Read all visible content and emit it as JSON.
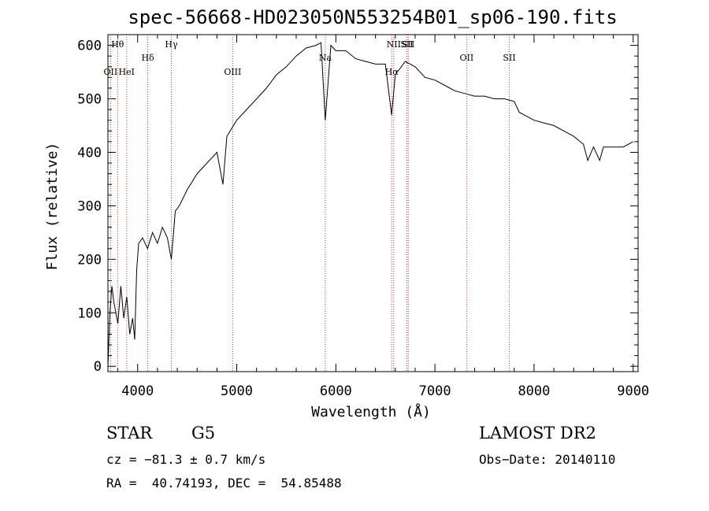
{
  "chart_data": {
    "type": "line",
    "title": "spec-56668-HD023050N553254B01_sp06-190.fits",
    "xlabel": "Wavelength (Å)",
    "ylabel": "Flux (relative)",
    "xlim": [
      3700,
      9050
    ],
    "ylim": [
      -10,
      620
    ],
    "xticks": [
      4000,
      5000,
      6000,
      7000,
      8000,
      9000
    ],
    "yticks": [
      0,
      100,
      200,
      300,
      400,
      500,
      600
    ],
    "grid": false,
    "series": [
      {
        "x": [
          3700,
          3720,
          3740,
          3760,
          3780,
          3800,
          3830,
          3860,
          3890,
          3920,
          3950,
          3970,
          3990,
          4010,
          4050,
          4100,
          4150,
          4200,
          4250,
          4300,
          4340,
          4380,
          4420,
          4500,
          4600,
          4700,
          4800,
          4861,
          4900,
          5000,
          5100,
          5200,
          5300,
          5400,
          5500,
          5600,
          5700,
          5800,
          5850,
          5893,
          5950,
          6000,
          6100,
          6200,
          6300,
          6400,
          6500,
          6563,
          6600,
          6700,
          6800,
          6900,
          7000,
          7100,
          7200,
          7300,
          7400,
          7500,
          7600,
          7700,
          7800,
          7850,
          7900,
          8000,
          8100,
          8200,
          8300,
          8400,
          8498,
          8542,
          8600,
          8662,
          8700,
          8800,
          8900,
          9000
        ],
        "y": [
          0,
          100,
          150,
          120,
          100,
          80,
          150,
          90,
          130,
          60,
          90,
          50,
          180,
          230,
          240,
          220,
          250,
          230,
          260,
          240,
          200,
          290,
          300,
          330,
          360,
          380,
          400,
          340,
          430,
          460,
          480,
          500,
          520,
          545,
          560,
          580,
          595,
          600,
          605,
          460,
          600,
          590,
          590,
          575,
          570,
          565,
          565,
          470,
          545,
          570,
          560,
          540,
          535,
          525,
          515,
          510,
          505,
          505,
          500,
          500,
          495,
          475,
          470,
          460,
          455,
          450,
          440,
          430,
          415,
          385,
          410,
          385,
          410,
          410,
          410,
          420
        ]
      }
    ],
    "lines": [
      {
        "label": "OII",
        "x": 3727,
        "row": 2
      },
      {
        "label": "Hθ",
        "x": 3798,
        "row": 0
      },
      {
        "label": "HeI",
        "x": 3889,
        "row": 2
      },
      {
        "label": "Hδ",
        "x": 4102,
        "row": 1
      },
      {
        "label": "Hγ",
        "x": 4340,
        "row": 0
      },
      {
        "label": "OIII",
        "x": 4959,
        "row": 2
      },
      {
        "label": "Na",
        "x": 5893,
        "row": 1
      },
      {
        "label": "NII",
        "x": 6584,
        "row": 0
      },
      {
        "label": "Hα",
        "x": 6563,
        "row": 2
      },
      {
        "label": "SII",
        "x": 6717,
        "row": 0
      },
      {
        "label": "SII",
        "x": 6731,
        "row": 0
      },
      {
        "label": "OII",
        "x": 7320,
        "row": 1
      },
      {
        "label": "SII",
        "x": 7750,
        "row": 1
      }
    ]
  },
  "info": {
    "object_class": "STAR",
    "subclass": "G5",
    "survey": "LAMOST DR2",
    "cz": "cz = −81.3 ± 0.7 km/s",
    "obs_date": "Obs−Date: 20140110",
    "coords": "RA =  40.74193, DEC =  54.85488"
  },
  "colors": {
    "spectrum": "#000000",
    "line_marker": "#c0392b"
  }
}
